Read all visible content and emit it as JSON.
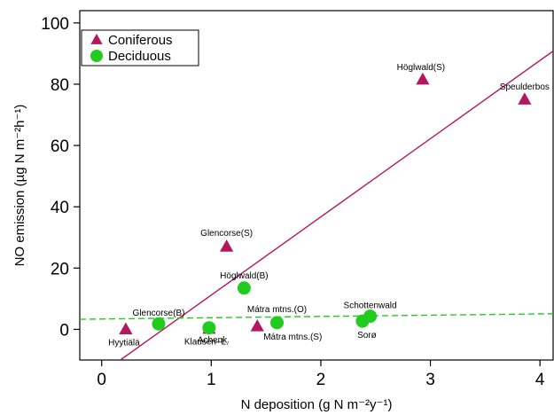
{
  "chart_data": {
    "type": "scatter",
    "xlabel": "N deposition (g N m⁻²y⁻¹)",
    "ylabel": "NO emission (µg N m⁻²h⁻¹)",
    "xlim": [
      -0.2,
      4.12
    ],
    "ylim": [
      -10,
      104
    ],
    "x_ticks": [
      0,
      1,
      2,
      3,
      4
    ],
    "y_ticks": [
      0,
      20,
      40,
      60,
      80,
      100
    ],
    "legend_position": "top-left",
    "series": [
      {
        "name": "Coniferous",
        "marker": "triangle",
        "color": "#b5175e",
        "points": [
          {
            "x": 0.22,
            "y": 0.0,
            "label": "Hyytiälä"
          },
          {
            "x": 1.14,
            "y": 27.0,
            "label": "Glencorse(S)"
          },
          {
            "x": 0.98,
            "y": 0.2,
            "label": "Achenk."
          },
          {
            "x": 1.42,
            "y": 1.0,
            "label": "Mátra mtns.(S)"
          },
          {
            "x": 2.93,
            "y": 81.5,
            "label": "Höglwald(S)"
          },
          {
            "x": 3.86,
            "y": 75.0,
            "label": "Speulderbos"
          }
        ]
      },
      {
        "name": "Deciduous",
        "marker": "circle",
        "color": "#22cc1f",
        "points": [
          {
            "x": 0.52,
            "y": 1.8,
            "label": "Glencorse(B)"
          },
          {
            "x": 0.98,
            "y": 0.5,
            "label": "Klausen–L."
          },
          {
            "x": 1.3,
            "y": 13.5,
            "label": "Höglwald(B)"
          },
          {
            "x": 1.6,
            "y": 2.2,
            "label": "Mátra mtns.(O)"
          },
          {
            "x": 2.38,
            "y": 2.7,
            "label": "Sorø"
          },
          {
            "x": 2.45,
            "y": 4.3,
            "label": "Schottenwald"
          }
        ]
      }
    ],
    "fit_lines": [
      {
        "series": "Coniferous",
        "style": "solid",
        "color": "#b5175e",
        "x": [
          0.17,
          4.12
        ],
        "y": [
          -10.0,
          90.8
        ]
      },
      {
        "series": "Deciduous",
        "style": "dashed",
        "color": "#22cc1f",
        "x": [
          -0.2,
          4.12
        ],
        "y": [
          3.3,
          5.1
        ]
      }
    ]
  }
}
